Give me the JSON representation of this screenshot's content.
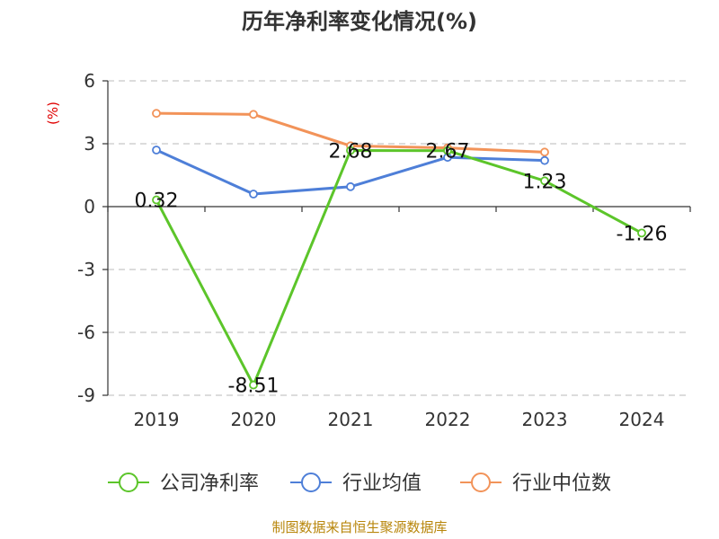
{
  "chart_data": {
    "type": "line",
    "title": "历年净利率变化情况(%)",
    "ylabel": "(%)",
    "xlabel": "",
    "categories": [
      "2019",
      "2020",
      "2021",
      "2022",
      "2023",
      "2024"
    ],
    "yticks": [
      "6",
      "3",
      "0",
      "-3",
      "-6",
      "-9"
    ],
    "ylim": [
      -9,
      6
    ],
    "grid": true,
    "legend_position": "bottom",
    "series": [
      {
        "name": "公司净利率",
        "color": "#5cc52a",
        "values": [
          0.32,
          -8.51,
          2.68,
          2.67,
          1.23,
          -1.26
        ],
        "labels": [
          "0.32",
          "-8.51",
          "2.68",
          "2.67",
          "1.23",
          "-1.26"
        ]
      },
      {
        "name": "行业均值",
        "color": "#4e7fd8",
        "values": [
          2.7,
          0.6,
          0.95,
          2.35,
          2.2,
          null
        ]
      },
      {
        "name": "行业中位数",
        "color": "#f29359",
        "values": [
          4.45,
          4.4,
          2.9,
          2.8,
          2.6,
          null
        ]
      }
    ]
  },
  "source": "制图数据来自恒生聚源数据库"
}
